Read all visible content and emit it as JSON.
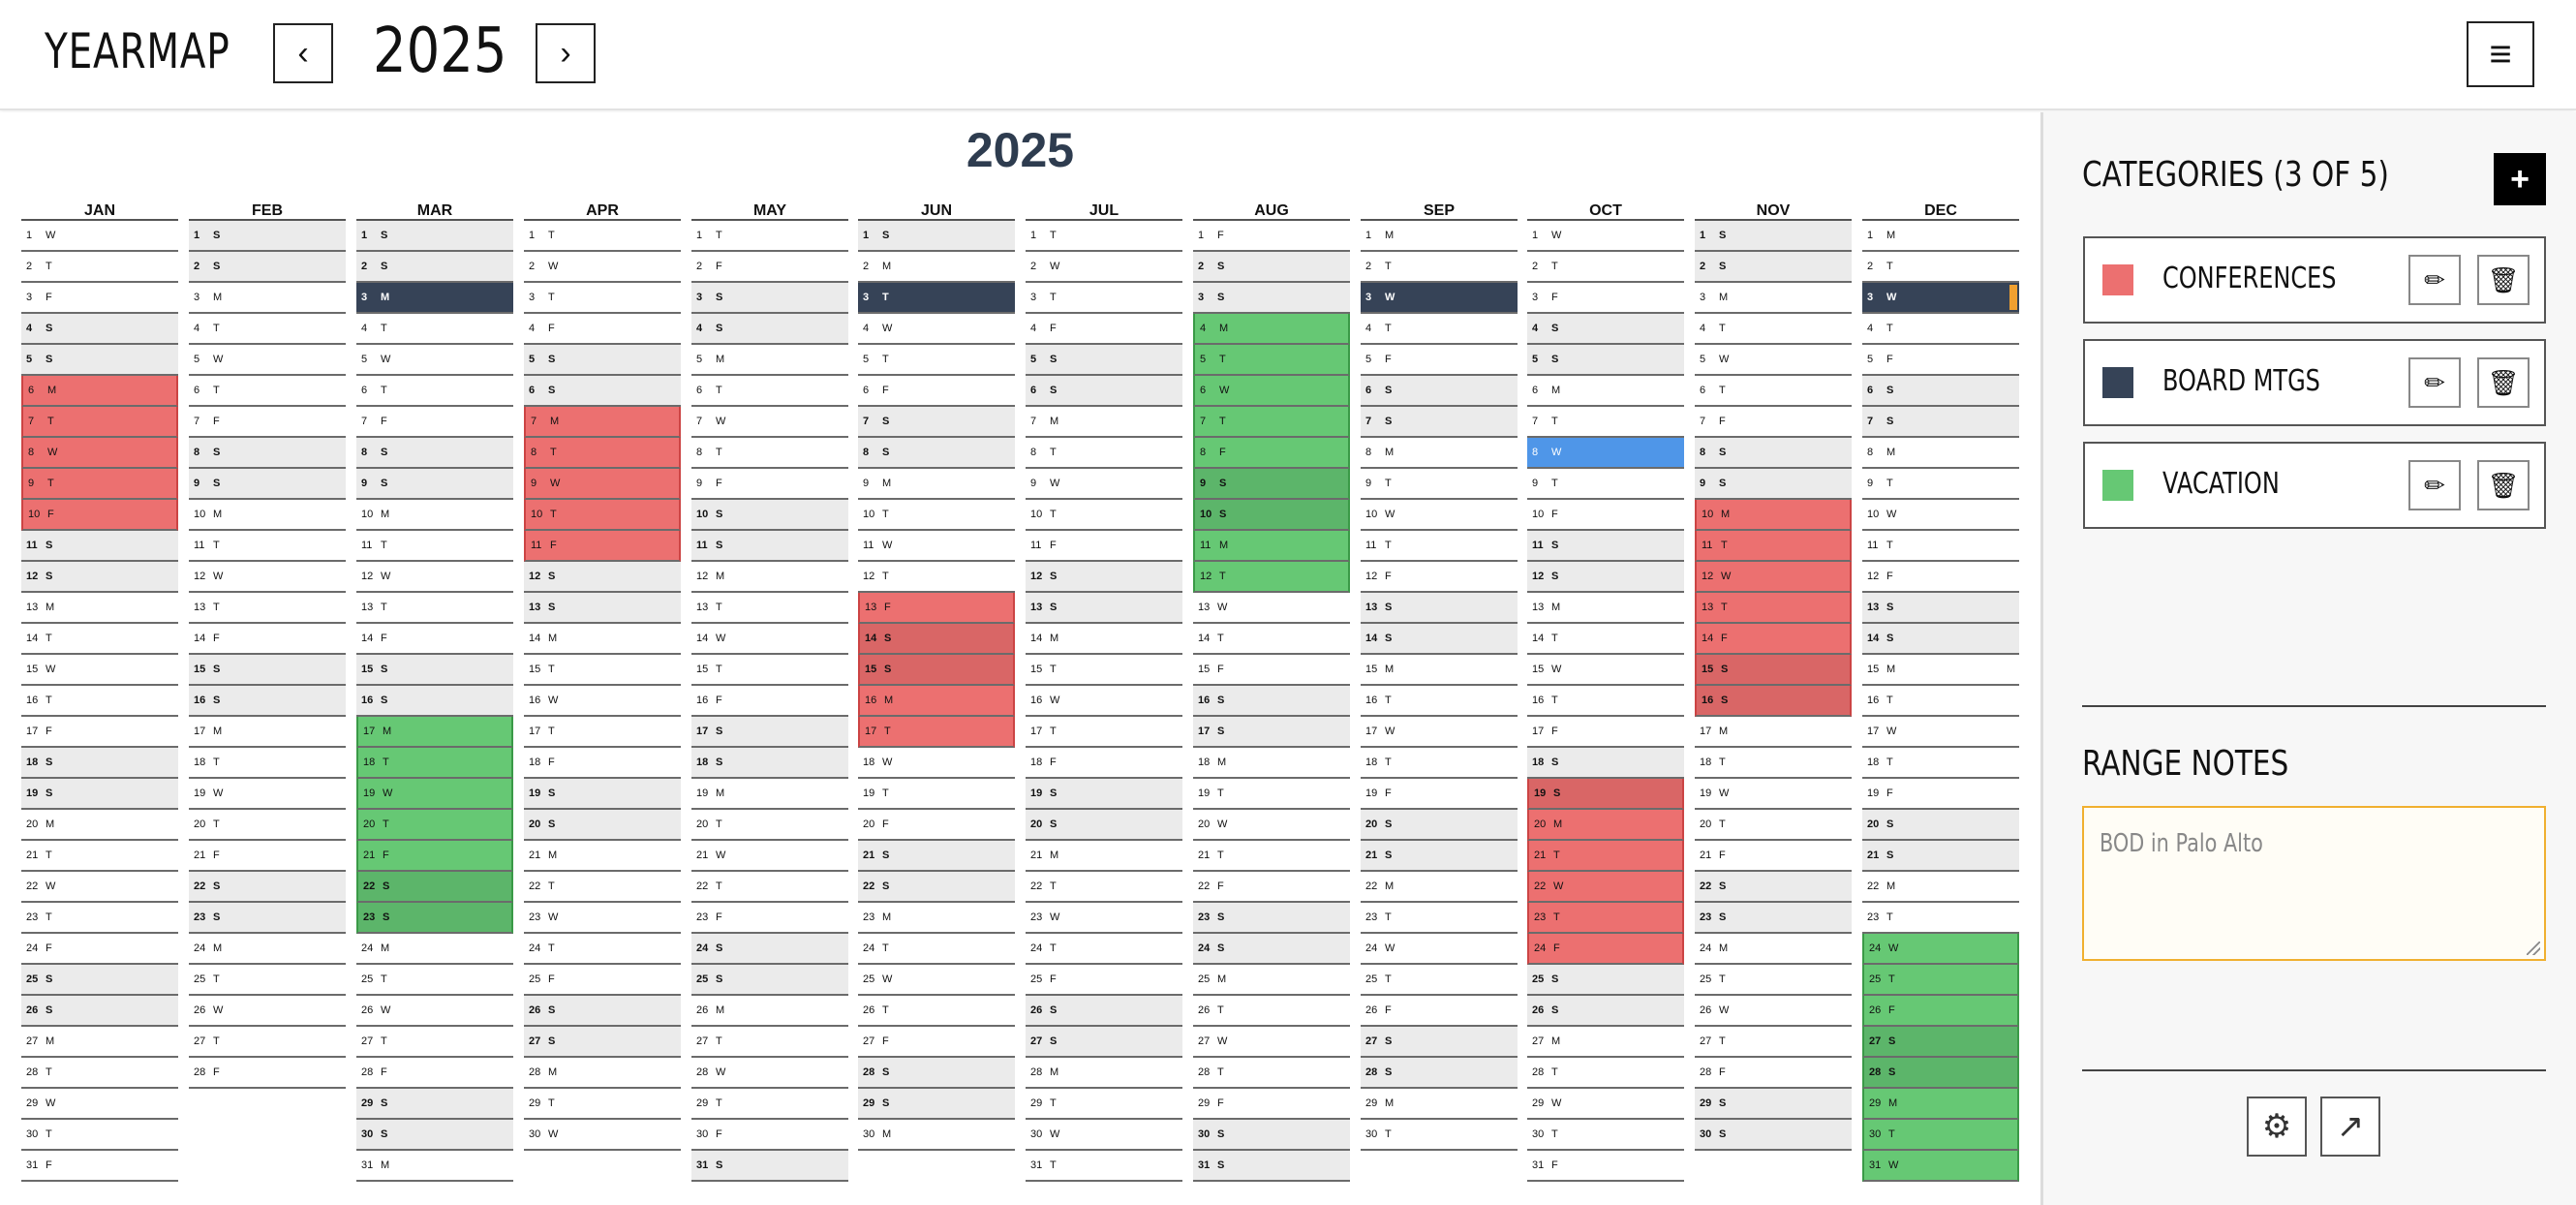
{
  "header": {
    "logo": "YEARMAP",
    "prev_icon": "‹",
    "year": "2025",
    "next_icon": "›",
    "menu_icon": "≡"
  },
  "calendar": {
    "title": "2025",
    "months": [
      {
        "name": "JAN",
        "start": 3,
        "days": 31
      },
      {
        "name": "FEB",
        "start": 6,
        "days": 28
      },
      {
        "name": "MAR",
        "start": 6,
        "days": 31
      },
      {
        "name": "APR",
        "start": 2,
        "days": 30
      },
      {
        "name": "MAY",
        "start": 4,
        "days": 31
      },
      {
        "name": "JUN",
        "start": 0,
        "days": 30
      },
      {
        "name": "JUL",
        "start": 2,
        "days": 31
      },
      {
        "name": "AUG",
        "start": 5,
        "days": 31
      },
      {
        "name": "SEP",
        "start": 1,
        "days": 30
      },
      {
        "name": "OCT",
        "start": 3,
        "days": 31
      },
      {
        "name": "NOV",
        "start": 6,
        "days": 30
      },
      {
        "name": "DEC",
        "start": 1,
        "days": 31
      }
    ],
    "weekday_letters": [
      "S",
      "M",
      "T",
      "W",
      "T",
      "F",
      "S"
    ],
    "ranges": [
      {
        "month": 0,
        "from": 6,
        "to": 10,
        "cat": "conf"
      },
      {
        "month": 2,
        "from": 3,
        "to": 3,
        "cat": "board"
      },
      {
        "month": 2,
        "from": 17,
        "to": 23,
        "cat": "vac"
      },
      {
        "month": 3,
        "from": 7,
        "to": 11,
        "cat": "conf"
      },
      {
        "month": 5,
        "from": 3,
        "to": 3,
        "cat": "board"
      },
      {
        "month": 5,
        "from": 13,
        "to": 17,
        "cat": "conf"
      },
      {
        "month": 7,
        "from": 4,
        "to": 12,
        "cat": "vac"
      },
      {
        "month": 8,
        "from": 3,
        "to": 3,
        "cat": "board"
      },
      {
        "month": 9,
        "from": 8,
        "to": 8,
        "cat": "blue"
      },
      {
        "month": 9,
        "from": 19,
        "to": 24,
        "cat": "conf"
      },
      {
        "month": 10,
        "from": 10,
        "to": 16,
        "cat": "conf"
      },
      {
        "month": 11,
        "from": 3,
        "to": 3,
        "cat": "board",
        "tag": true
      },
      {
        "month": 11,
        "from": 24,
        "to": 31,
        "cat": "vac"
      }
    ]
  },
  "sidebar": {
    "categories_title": "CATEGORIES (3 OF 5)",
    "add_icon": "+",
    "categories": [
      {
        "name": "CONFERENCES",
        "color": "#ec7070"
      },
      {
        "name": "BOARD MTGS",
        "color": "#364357"
      },
      {
        "name": "VACATION",
        "color": "#66c874"
      }
    ],
    "edit_icon": "✏",
    "delete_icon": "🗑",
    "range_notes_title": "RANGE NOTES",
    "notes_placeholder": "BOD in Palo Alto",
    "settings_icon": "⚙",
    "share_icon": "↗"
  }
}
